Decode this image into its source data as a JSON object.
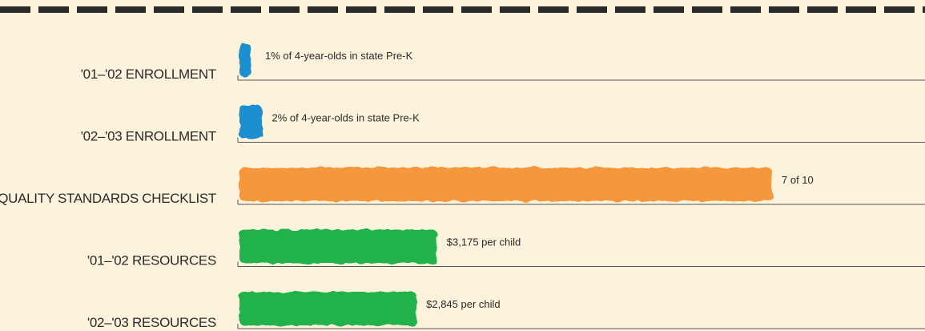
{
  "chart_data": [
    {
      "type": "bar",
      "orientation": "horizontal",
      "categories": [
        "'01–'02 ENROLLMENT"
      ],
      "values": [
        1
      ],
      "value_labels": [
        "1% of 4-year-olds in state Pre-K"
      ],
      "color": "#1b8fd0",
      "xlim": [
        0,
        60
      ]
    },
    {
      "type": "bar",
      "orientation": "horizontal",
      "categories": [
        "'02–'03 ENROLLMENT"
      ],
      "values": [
        2
      ],
      "value_labels": [
        "2% of 4-year-olds in state Pre-K"
      ],
      "color": "#1b8fd0",
      "xlim": [
        0,
        60
      ]
    },
    {
      "type": "bar",
      "orientation": "horizontal",
      "categories": [
        "QUALITY STANDARDS CHECKLIST"
      ],
      "values": [
        7
      ],
      "value_labels": [
        "7 of 10"
      ],
      "color": "#f4973e",
      "xlim": [
        0,
        9
      ]
    },
    {
      "type": "bar",
      "orientation": "horizontal",
      "categories": [
        "'01–'02 RESOURCES"
      ],
      "values": [
        3175
      ],
      "value_labels": [
        "$3,175 per child"
      ],
      "color": "#22b24c",
      "xlim": [
        0,
        11000
      ]
    },
    {
      "type": "bar",
      "orientation": "horizontal",
      "categories": [
        "'02–'03 RESOURCES"
      ],
      "values": [
        2845
      ],
      "value_labels": [
        "$2,845 per child"
      ],
      "color": "#22b24c",
      "xlim": [
        0,
        11000
      ]
    }
  ]
}
